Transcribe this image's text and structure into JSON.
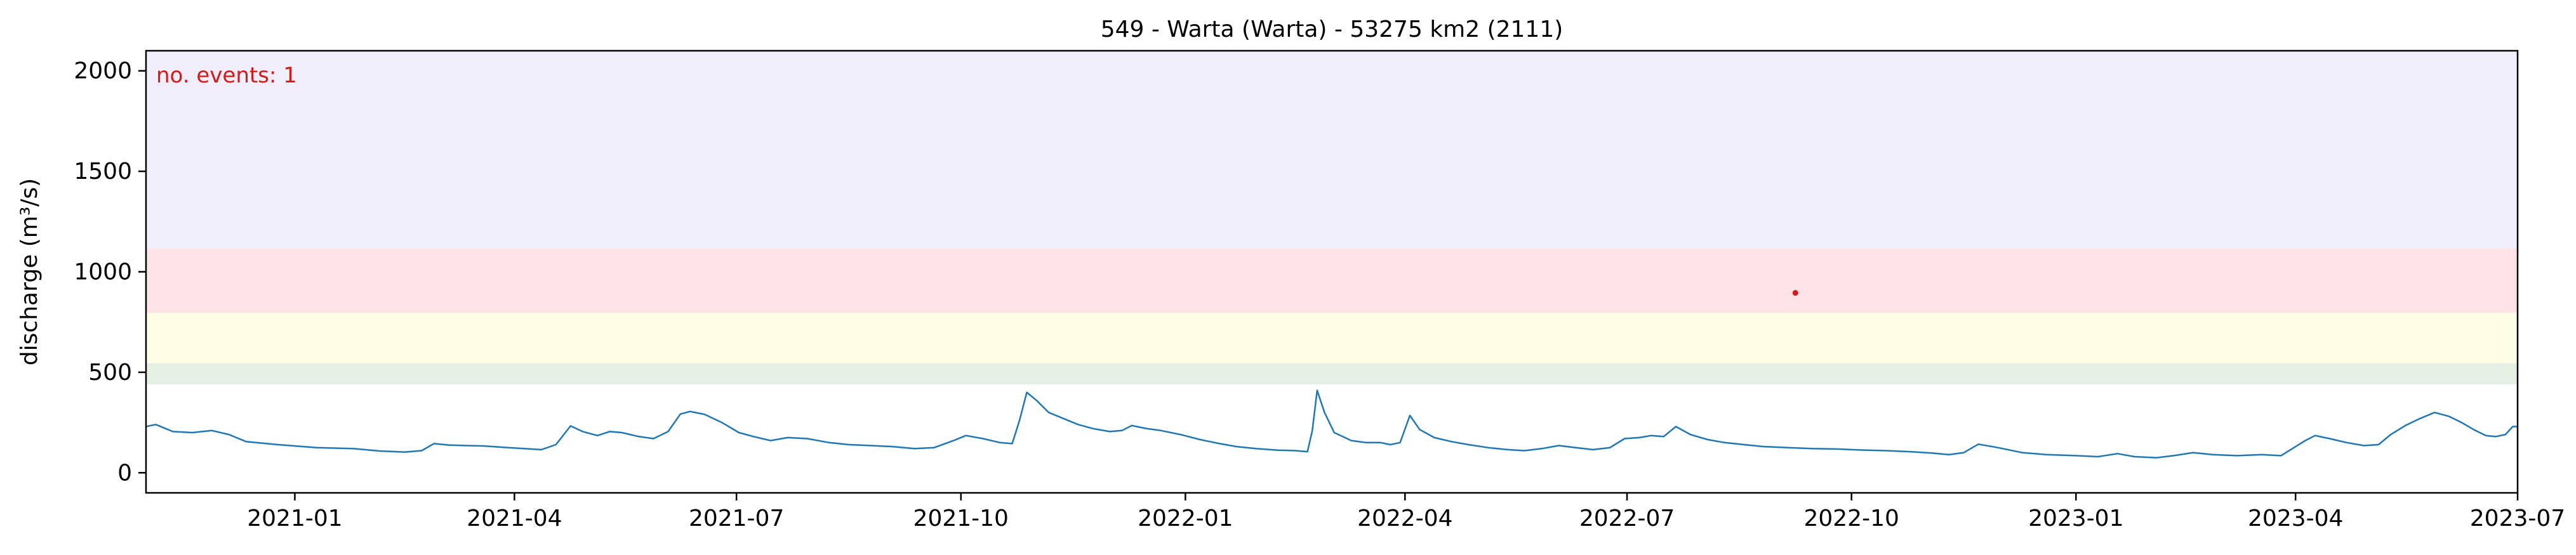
{
  "chart_data": {
    "type": "line",
    "title": "549 - Warta (Warta) - 53275 km2 (2111)",
    "ylabel": "discharge (m³/s)",
    "xlabel": "",
    "xlim": [
      "2020-11-01",
      "2023-07-01"
    ],
    "ylim": [
      -100,
      2100
    ],
    "yticks": [
      0,
      500,
      1000,
      1500,
      2000
    ],
    "xticks": [
      {
        "date": "2021-01-01",
        "label": "2021-01"
      },
      {
        "date": "2021-04-01",
        "label": "2021-04"
      },
      {
        "date": "2021-07-01",
        "label": "2021-07"
      },
      {
        "date": "2021-10-01",
        "label": "2021-10"
      },
      {
        "date": "2022-01-01",
        "label": "2022-01"
      },
      {
        "date": "2022-04-01",
        "label": "2022-04"
      },
      {
        "date": "2022-07-01",
        "label": "2022-07"
      },
      {
        "date": "2022-10-01",
        "label": "2022-10"
      },
      {
        "date": "2023-01-01",
        "label": "2023-01"
      },
      {
        "date": "2023-04-01",
        "label": "2023-04"
      },
      {
        "date": "2023-07-01",
        "label": "2023-07"
      }
    ],
    "bands": [
      {
        "from": 440,
        "to": 545,
        "color": "#e3f0e3"
      },
      {
        "from": 545,
        "to": 795,
        "color": "#fefee6"
      },
      {
        "from": 795,
        "to": 1115,
        "color": "#fde3e6"
      },
      {
        "from": 1115,
        "to": 2100,
        "color": "#f0eefa"
      }
    ],
    "annotation": {
      "text": "no. events: 1",
      "color": "#d61a1a"
    },
    "grid": false,
    "series": [
      {
        "color": "#1f77b4",
        "points": [
          [
            "2020-11-01",
            230
          ],
          [
            "2020-11-05",
            240
          ],
          [
            "2020-11-12",
            205
          ],
          [
            "2020-11-20",
            200
          ],
          [
            "2020-11-28",
            210
          ],
          [
            "2020-12-05",
            190
          ],
          [
            "2020-12-12",
            155
          ],
          [
            "2020-12-25",
            140
          ],
          [
            "2021-01-10",
            125
          ],
          [
            "2021-01-25",
            120
          ],
          [
            "2021-02-05",
            108
          ],
          [
            "2021-02-15",
            103
          ],
          [
            "2021-02-22",
            110
          ],
          [
            "2021-02-27",
            145
          ],
          [
            "2021-03-05",
            138
          ],
          [
            "2021-03-12",
            135
          ],
          [
            "2021-03-20",
            133
          ],
          [
            "2021-03-28",
            126
          ],
          [
            "2021-04-05",
            120
          ],
          [
            "2021-04-12",
            115
          ],
          [
            "2021-04-18",
            140
          ],
          [
            "2021-04-24",
            233
          ],
          [
            "2021-04-29",
            205
          ],
          [
            "2021-05-05",
            185
          ],
          [
            "2021-05-10",
            205
          ],
          [
            "2021-05-15",
            200
          ],
          [
            "2021-05-22",
            180
          ],
          [
            "2021-05-28",
            170
          ],
          [
            "2021-06-03",
            205
          ],
          [
            "2021-06-08",
            292
          ],
          [
            "2021-06-12",
            305
          ],
          [
            "2021-06-18",
            290
          ],
          [
            "2021-06-25",
            250
          ],
          [
            "2021-07-02",
            200
          ],
          [
            "2021-07-08",
            180
          ],
          [
            "2021-07-15",
            160
          ],
          [
            "2021-07-22",
            175
          ],
          [
            "2021-07-30",
            170
          ],
          [
            "2021-08-08",
            150
          ],
          [
            "2021-08-16",
            140
          ],
          [
            "2021-08-25",
            135
          ],
          [
            "2021-09-03",
            130
          ],
          [
            "2021-09-12",
            120
          ],
          [
            "2021-09-20",
            125
          ],
          [
            "2021-09-28",
            160
          ],
          [
            "2021-10-03",
            185
          ],
          [
            "2021-10-10",
            170
          ],
          [
            "2021-10-17",
            150
          ],
          [
            "2021-10-22",
            145
          ],
          [
            "2021-10-25",
            260
          ],
          [
            "2021-10-28",
            400
          ],
          [
            "2021-11-01",
            360
          ],
          [
            "2021-11-06",
            300
          ],
          [
            "2021-11-12",
            270
          ],
          [
            "2021-11-18",
            240
          ],
          [
            "2021-11-24",
            220
          ],
          [
            "2021-12-01",
            205
          ],
          [
            "2021-12-06",
            210
          ],
          [
            "2021-12-10",
            235
          ],
          [
            "2021-12-16",
            220
          ],
          [
            "2021-12-22",
            210
          ],
          [
            "2021-12-30",
            190
          ],
          [
            "2022-01-07",
            165
          ],
          [
            "2022-01-15",
            145
          ],
          [
            "2022-01-22",
            130
          ],
          [
            "2022-01-30",
            120
          ],
          [
            "2022-02-08",
            112
          ],
          [
            "2022-02-15",
            110
          ],
          [
            "2022-02-20",
            105
          ],
          [
            "2022-02-22",
            210
          ],
          [
            "2022-02-24",
            410
          ],
          [
            "2022-02-27",
            300
          ],
          [
            "2022-03-03",
            200
          ],
          [
            "2022-03-10",
            160
          ],
          [
            "2022-03-16",
            150
          ],
          [
            "2022-03-22",
            150
          ],
          [
            "2022-03-26",
            140
          ],
          [
            "2022-03-30",
            150
          ],
          [
            "2022-04-03",
            285
          ],
          [
            "2022-04-07",
            215
          ],
          [
            "2022-04-13",
            175
          ],
          [
            "2022-04-20",
            155
          ],
          [
            "2022-04-27",
            140
          ],
          [
            "2022-05-05",
            125
          ],
          [
            "2022-05-13",
            115
          ],
          [
            "2022-05-20",
            110
          ],
          [
            "2022-05-27",
            120
          ],
          [
            "2022-06-03",
            135
          ],
          [
            "2022-06-10",
            125
          ],
          [
            "2022-06-17",
            115
          ],
          [
            "2022-06-24",
            125
          ],
          [
            "2022-06-30",
            170
          ],
          [
            "2022-07-06",
            175
          ],
          [
            "2022-07-11",
            185
          ],
          [
            "2022-07-16",
            180
          ],
          [
            "2022-07-21",
            230
          ],
          [
            "2022-07-27",
            190
          ],
          [
            "2022-08-03",
            165
          ],
          [
            "2022-08-10",
            150
          ],
          [
            "2022-08-18",
            140
          ],
          [
            "2022-08-26",
            130
          ],
          [
            "2022-09-05",
            125
          ],
          [
            "2022-09-15",
            120
          ],
          [
            "2022-09-25",
            118
          ],
          [
            "2022-10-05",
            113
          ],
          [
            "2022-10-15",
            110
          ],
          [
            "2022-10-25",
            105
          ],
          [
            "2022-11-03",
            98
          ],
          [
            "2022-11-10",
            90
          ],
          [
            "2022-11-16",
            100
          ],
          [
            "2022-11-22",
            142
          ],
          [
            "2022-11-30",
            125
          ],
          [
            "2022-12-10",
            100
          ],
          [
            "2022-12-20",
            90
          ],
          [
            "2023-01-01",
            85
          ],
          [
            "2023-01-10",
            80
          ],
          [
            "2023-01-18",
            95
          ],
          [
            "2023-01-25",
            80
          ],
          [
            "2023-02-03",
            75
          ],
          [
            "2023-02-10",
            85
          ],
          [
            "2023-02-18",
            100
          ],
          [
            "2023-02-26",
            90
          ],
          [
            "2023-03-08",
            85
          ],
          [
            "2023-03-18",
            90
          ],
          [
            "2023-03-26",
            85
          ],
          [
            "2023-04-05",
            160
          ],
          [
            "2023-04-09",
            185
          ],
          [
            "2023-04-15",
            170
          ],
          [
            "2023-04-22",
            150
          ],
          [
            "2023-04-29",
            135
          ],
          [
            "2023-05-05",
            140
          ],
          [
            "2023-05-10",
            190
          ],
          [
            "2023-05-16",
            235
          ],
          [
            "2023-05-22",
            270
          ],
          [
            "2023-05-28",
            300
          ],
          [
            "2023-06-03",
            280
          ],
          [
            "2023-06-08",
            250
          ],
          [
            "2023-06-13",
            215
          ],
          [
            "2023-06-18",
            185
          ],
          [
            "2023-06-22",
            180
          ],
          [
            "2023-06-26",
            190
          ],
          [
            "2023-06-29",
            230
          ],
          [
            "2023-07-01",
            230
          ]
        ]
      }
    ],
    "events": [
      {
        "date": "2022-09-08",
        "value": 895,
        "color": "#d61a1a"
      }
    ]
  }
}
